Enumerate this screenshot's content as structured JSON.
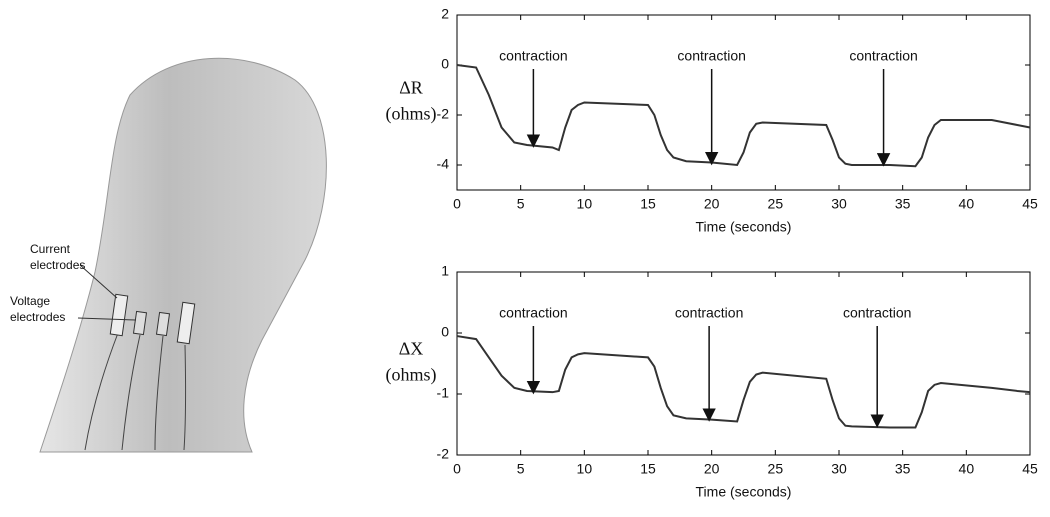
{
  "figure_labels": {
    "current": [
      "Current",
      "electrodes"
    ],
    "voltage": [
      "Voltage",
      "electrodes"
    ]
  },
  "chart_data": [
    {
      "type": "line",
      "ylabel": [
        "ΔR",
        "(ohms)"
      ],
      "xlabel": "Time (seconds)",
      "color": "#333333",
      "xlim": [
        0,
        45
      ],
      "xticks": [
        0,
        5,
        10,
        15,
        20,
        25,
        30,
        35,
        40,
        45
      ],
      "ylim": [
        -5,
        2
      ],
      "yticks": [
        -4,
        -2,
        0,
        2
      ],
      "x": [
        0,
        1.5,
        2.5,
        3.5,
        4.5,
        5.5,
        7.5,
        8,
        8.5,
        9,
        9.5,
        10,
        15,
        15.5,
        16,
        16.5,
        17,
        18,
        20,
        22,
        22.5,
        23,
        23.5,
        24,
        29,
        29.5,
        30,
        30.5,
        31,
        34,
        36,
        36.5,
        37,
        37.5,
        38,
        42,
        44,
        45
      ],
      "values": [
        0,
        -0.1,
        -1.2,
        -2.5,
        -3.1,
        -3.2,
        -3.3,
        -3.4,
        -2.5,
        -1.8,
        -1.6,
        -1.5,
        -1.6,
        -2.0,
        -2.8,
        -3.4,
        -3.7,
        -3.85,
        -3.9,
        -4.0,
        -3.5,
        -2.7,
        -2.35,
        -2.3,
        -2.4,
        -3.0,
        -3.7,
        -3.95,
        -4.0,
        -4.0,
        -4.05,
        -3.7,
        -2.9,
        -2.4,
        -2.2,
        -2.2,
        -2.4,
        -2.5
      ],
      "annotations": [
        {
          "text": "contraction",
          "x": 6,
          "y": -3.3
        },
        {
          "text": "contraction",
          "x": 20,
          "y": -4.0
        },
        {
          "text": "contraction",
          "x": 33.5,
          "y": -4.05
        }
      ]
    },
    {
      "type": "line",
      "ylabel": [
        "ΔX",
        "(ohms)"
      ],
      "xlabel": "Time (seconds)",
      "color": "#333333",
      "xlim": [
        0,
        45
      ],
      "xticks": [
        0,
        5,
        10,
        15,
        20,
        25,
        30,
        35,
        40,
        45
      ],
      "ylim": [
        -2,
        1
      ],
      "yticks": [
        -2,
        -1,
        0,
        1
      ],
      "x": [
        0,
        1.5,
        2.5,
        3.5,
        4.5,
        5.5,
        7.5,
        8,
        8.5,
        9,
        9.5,
        10,
        15,
        15.5,
        16,
        16.5,
        17,
        18,
        20,
        22,
        22.5,
        23,
        23.5,
        24,
        29,
        29.5,
        30,
        30.5,
        31,
        34,
        36,
        36.5,
        37,
        37.5,
        38,
        42,
        44,
        45
      ],
      "values": [
        -0.05,
        -0.1,
        -0.4,
        -0.7,
        -0.9,
        -0.95,
        -0.97,
        -0.95,
        -0.6,
        -0.4,
        -0.35,
        -0.33,
        -0.4,
        -0.55,
        -0.9,
        -1.2,
        -1.35,
        -1.4,
        -1.42,
        -1.45,
        -1.1,
        -0.8,
        -0.68,
        -0.65,
        -0.75,
        -1.1,
        -1.4,
        -1.52,
        -1.53,
        -1.55,
        -1.55,
        -1.3,
        -0.95,
        -0.85,
        -0.82,
        -0.9,
        -0.95,
        -0.97
      ],
      "annotations": [
        {
          "text": "contraction",
          "x": 6,
          "y": -1.0
        },
        {
          "text": "contraction",
          "x": 19.8,
          "y": -1.45
        },
        {
          "text": "contraction",
          "x": 33,
          "y": -1.55
        }
      ]
    }
  ]
}
